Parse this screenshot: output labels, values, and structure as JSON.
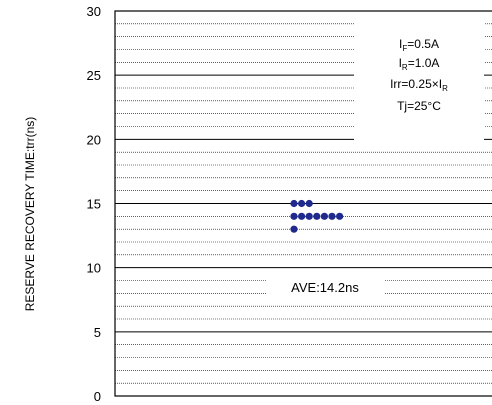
{
  "chart_data": {
    "type": "scatter",
    "title": "",
    "xlabel": "",
    "ylabel": "RESERVE RECOVERY TIME:trr(ns)",
    "ylim": [
      0,
      30
    ],
    "yticks": [
      0,
      5,
      10,
      15,
      20,
      25,
      30
    ],
    "grid": true,
    "grid_minor_step": 1,
    "marker_color": "#1f2a8c",
    "points": [
      {
        "level": 15,
        "count": 3
      },
      {
        "level": 14,
        "count": 7
      },
      {
        "level": 13,
        "count": 1
      }
    ],
    "conditions": {
      "if": {
        "main": "I",
        "sub": "F",
        "rest": "=0.5A"
      },
      "ir": {
        "main": "I",
        "sub": "R",
        "rest": "=1.0A"
      },
      "irr": {
        "main": "Irr=0.25×I",
        "sub": "R",
        "rest": ""
      },
      "tj": "Tj=25°C"
    },
    "annotation": "AVE:14.2ns"
  }
}
